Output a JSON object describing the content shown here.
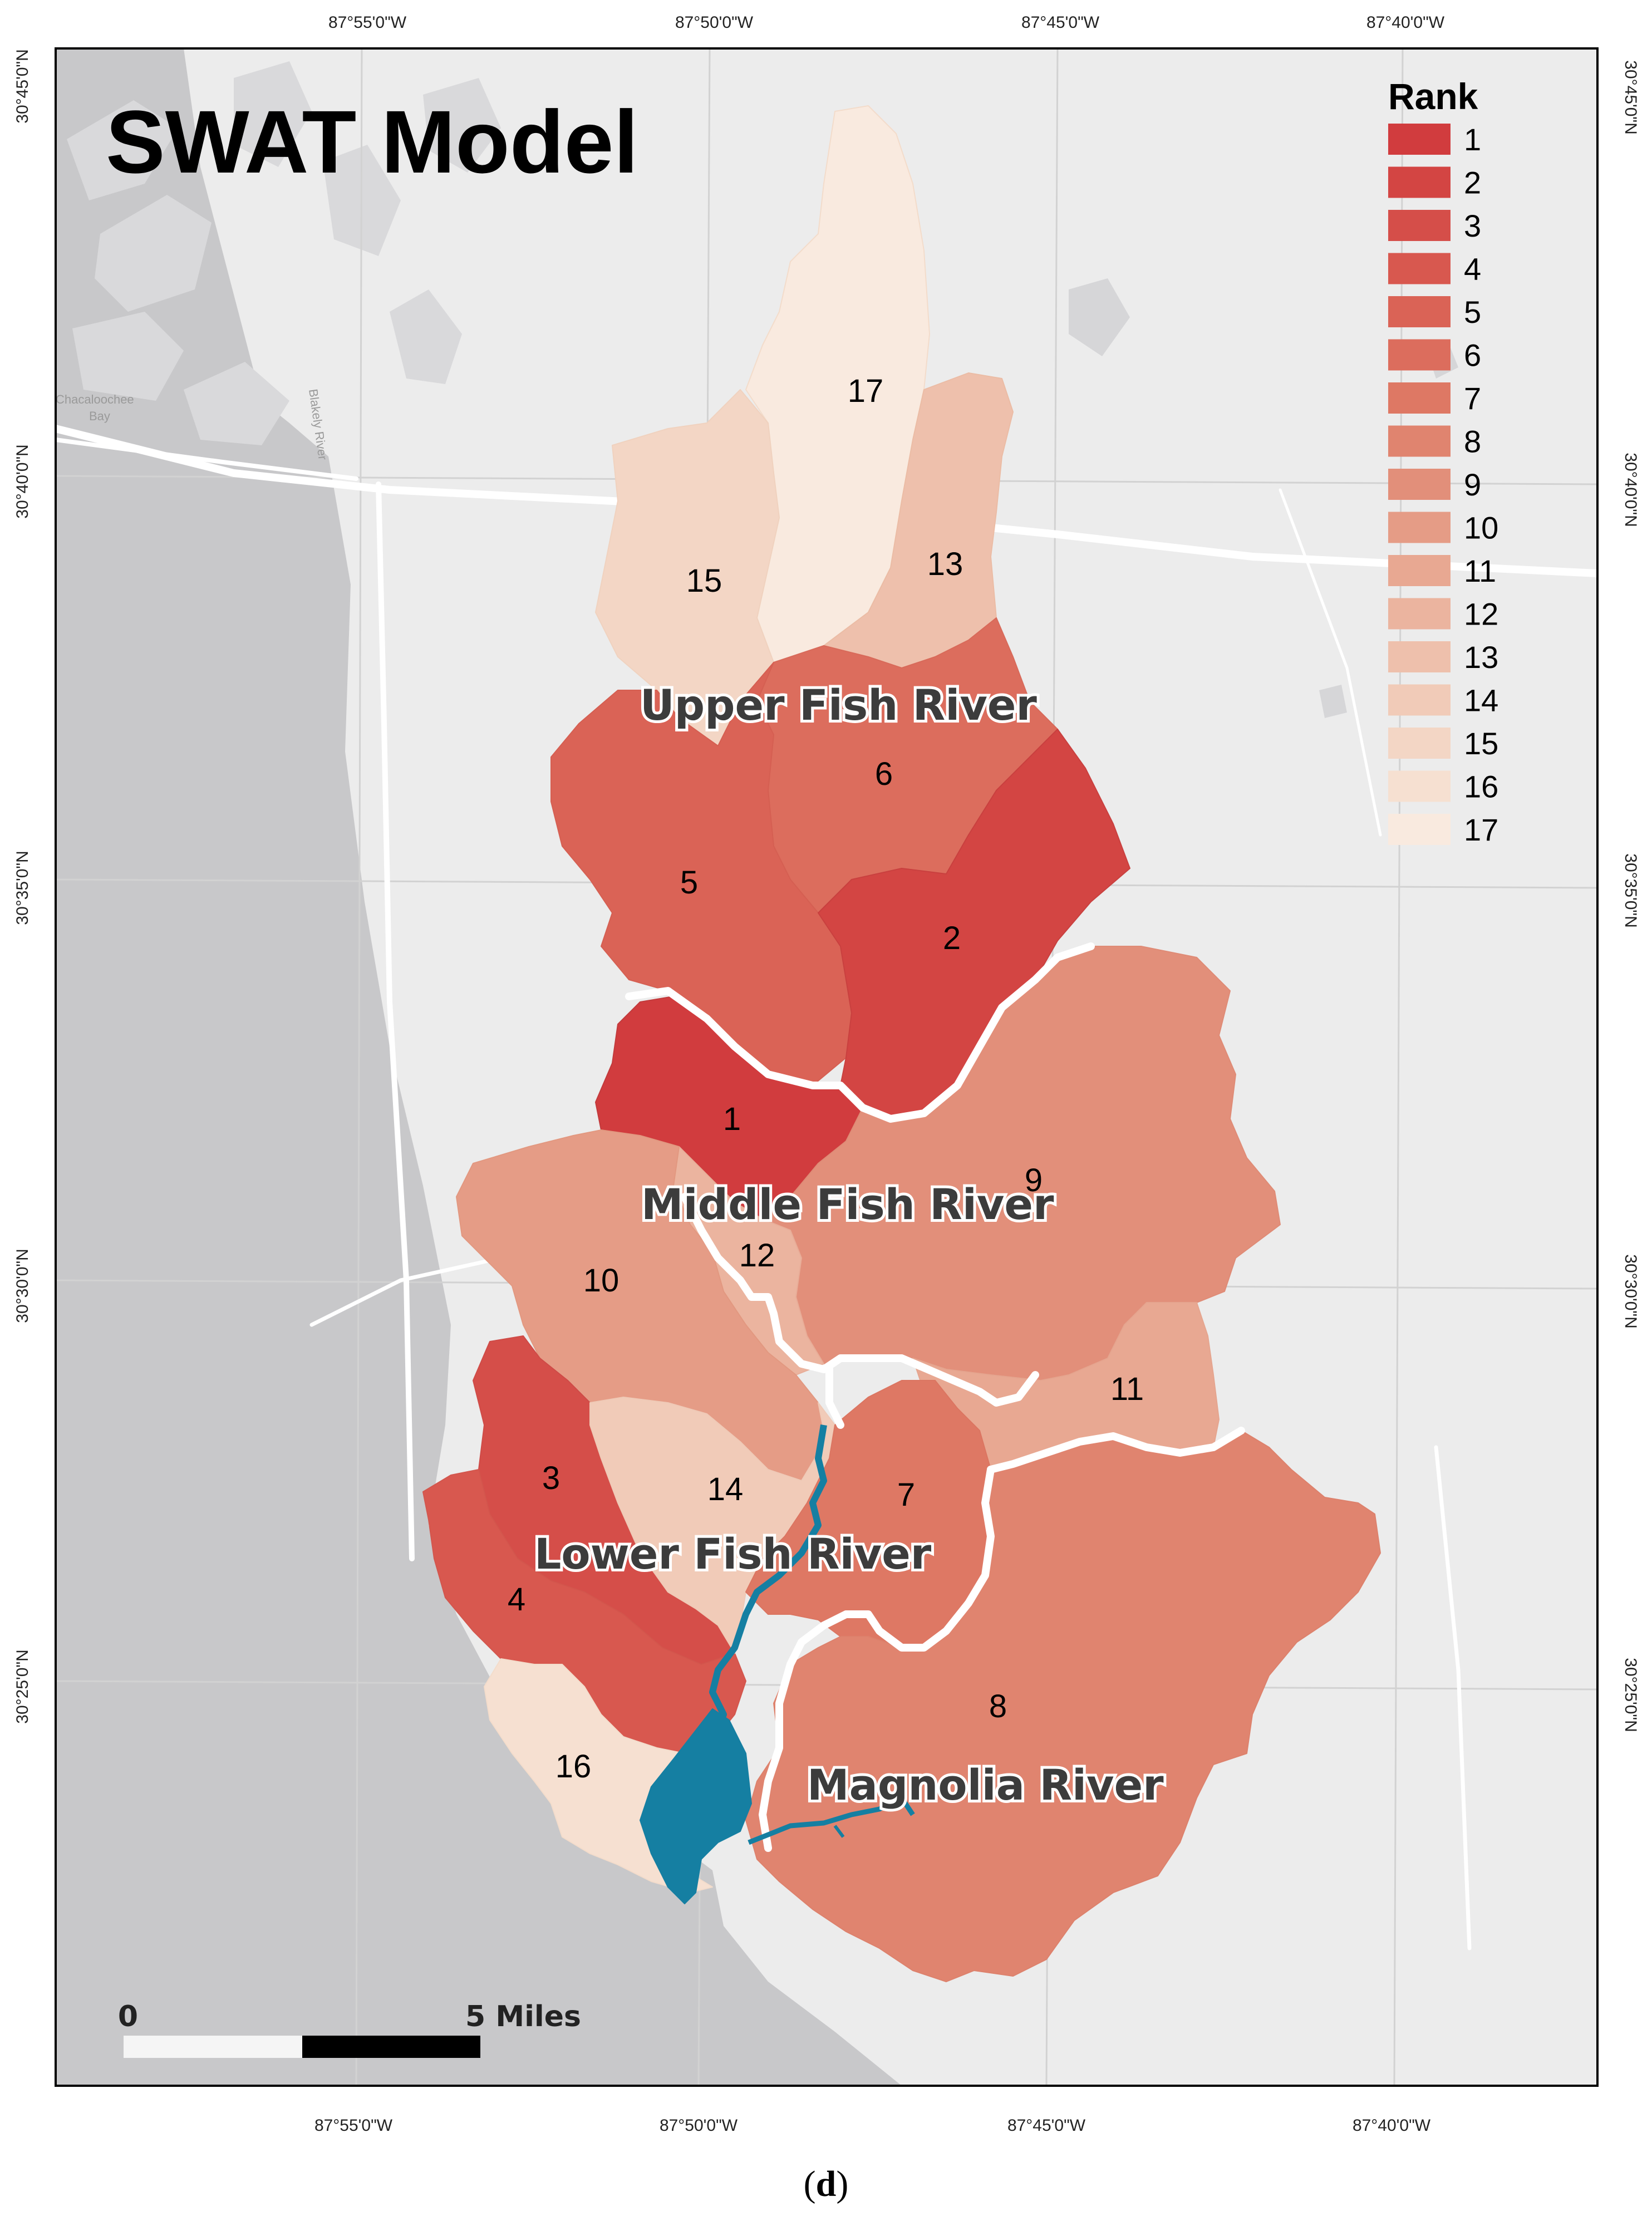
{
  "title": "SWAT Model",
  "caption": "(d)",
  "caption_letter": "d",
  "axes": {
    "top_longitudes": [
      "87°55'0\"W",
      "87°50'0\"W",
      "87°45'0\"W",
      "87°40'0\"W"
    ],
    "bottom_longitudes": [
      "87°55'0\"W",
      "87°50'0\"W",
      "87°45'0\"W",
      "87°40'0\"W"
    ],
    "left_latitudes": [
      "30°45'0\"N",
      "30°40'0\"N",
      "30°35'0\"N",
      "30°30'0\"N",
      "30°25'0\"N"
    ],
    "right_latitudes": [
      "30°45'0\"N",
      "30°40'0\"N",
      "30°35'0\"N",
      "30°30'0\"N",
      "30°25'0\"N"
    ]
  },
  "legend": {
    "title": "Rank",
    "items": [
      {
        "label": "1",
        "color": "#d13c3e"
      },
      {
        "label": "2",
        "color": "#d34543"
      },
      {
        "label": "3",
        "color": "#d54e49"
      },
      {
        "label": "4",
        "color": "#d8584f"
      },
      {
        "label": "5",
        "color": "#da6356"
      },
      {
        "label": "6",
        "color": "#dc6d5d"
      },
      {
        "label": "7",
        "color": "#de7864"
      },
      {
        "label": "8",
        "color": "#e0846f"
      },
      {
        "label": "9",
        "color": "#e28f7a"
      },
      {
        "label": "10",
        "color": "#e59c86"
      },
      {
        "label": "11",
        "color": "#e8a892"
      },
      {
        "label": "12",
        "color": "#ebb49f"
      },
      {
        "label": "13",
        "color": "#eec0ac"
      },
      {
        "label": "14",
        "color": "#f1cbb8"
      },
      {
        "label": "15",
        "color": "#f3d6c5"
      },
      {
        "label": "16",
        "color": "#f6e0d1"
      },
      {
        "label": "17",
        "color": "#f9eadf"
      }
    ]
  },
  "subwatersheds": [
    {
      "rank": "1",
      "label": "1"
    },
    {
      "rank": "2",
      "label": "2"
    },
    {
      "rank": "3",
      "label": "3"
    },
    {
      "rank": "4",
      "label": "4"
    },
    {
      "rank": "5",
      "label": "5"
    },
    {
      "rank": "6",
      "label": "6"
    },
    {
      "rank": "7",
      "label": "7"
    },
    {
      "rank": "8",
      "label": "8"
    },
    {
      "rank": "9",
      "label": "9"
    },
    {
      "rank": "10",
      "label": "10"
    },
    {
      "rank": "11",
      "label": "11"
    },
    {
      "rank": "12",
      "label": "12"
    },
    {
      "rank": "13",
      "label": "13"
    },
    {
      "rank": "14",
      "label": "14"
    },
    {
      "rank": "15",
      "label": "15"
    },
    {
      "rank": "16",
      "label": "16"
    },
    {
      "rank": "17",
      "label": "17"
    }
  ],
  "regions": [
    "Upper Fish River",
    "Middle Fish River",
    "Lower Fish River",
    "Magnolia River"
  ],
  "basemap_places": [
    "Chacaloochee",
    "Bay",
    "Blakely River"
  ],
  "scale_bar": {
    "start_label": "0",
    "end_label": "5 Miles"
  },
  "colors": {
    "land": "#ececec",
    "water": "#c8c8ca",
    "road": "#ffffff",
    "river": "#157fa2",
    "boundary": "#ffffff",
    "frame": "#000000"
  }
}
